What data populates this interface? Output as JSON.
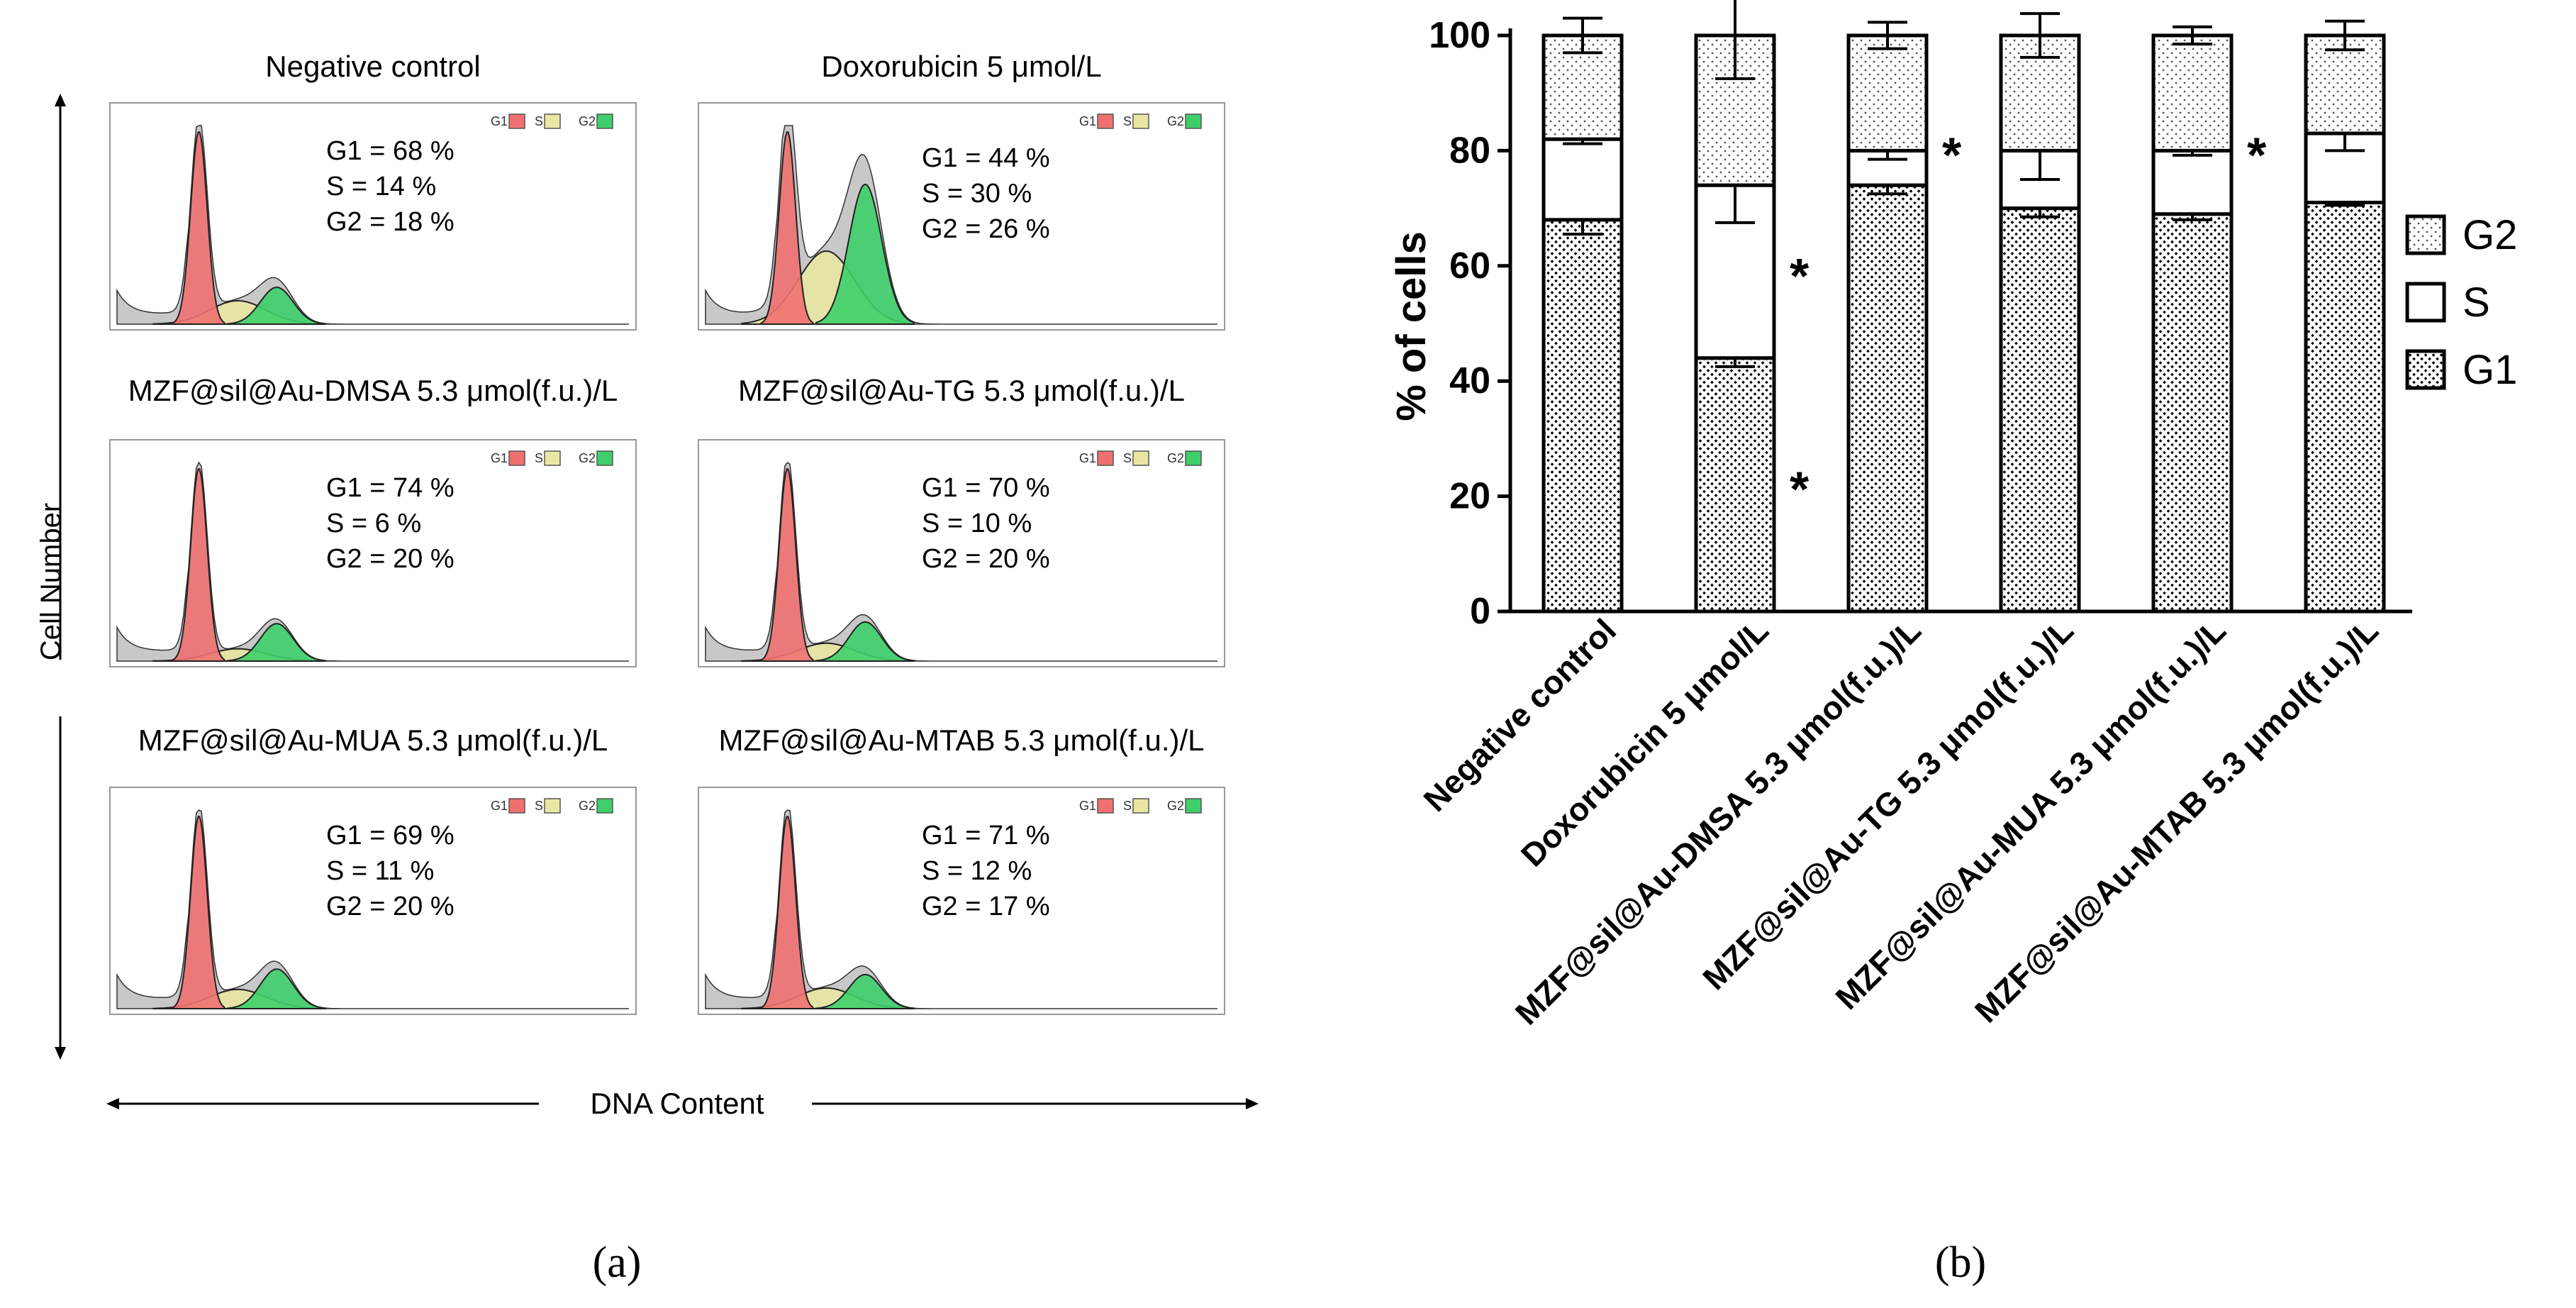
{
  "colors": {
    "g1_fill": "#f07070",
    "s_fill": "#e8e6a2",
    "g2_fill": "#3ecf6a",
    "raw_fill": "#c8c8c8",
    "axis": "#000000"
  },
  "panel_a": {
    "y_axis_label": "Cell Number",
    "x_axis_label": "DNA Content",
    "legend": [
      "G1",
      "S",
      "G2"
    ],
    "caption": "(a)",
    "histograms": [
      {
        "title": "Negative control",
        "lines": [
          "G1 = 68 %",
          "S = 14 %",
          "G2 = 18 %"
        ],
        "g1": 68,
        "s": 14,
        "g2": 18
      },
      {
        "title": "Doxorubicin 5 μmol/L",
        "lines": [
          "G1 = 44 %",
          "S = 30 %",
          "G2 = 26 %"
        ],
        "g1": 44,
        "s": 30,
        "g2": 26
      },
      {
        "title": "MZF@sil@Au-DMSA 5.3 μmol(f.u.)/L",
        "lines": [
          "G1 = 74 %",
          "S = 6 %",
          "G2 = 20 %"
        ],
        "g1": 74,
        "s": 6,
        "g2": 20
      },
      {
        "title": "MZF@sil@Au-TG 5.3 μmol(f.u.)/L",
        "lines": [
          "G1 = 70 %",
          "S = 10 %",
          "G2 = 20 %"
        ],
        "g1": 70,
        "s": 10,
        "g2": 20
      },
      {
        "title": "MZF@sil@Au-MUA 5.3 μmol(f.u.)/L",
        "lines": [
          "G1 = 69 %",
          "S = 11 %",
          "G2 = 20 %"
        ],
        "g1": 69,
        "s": 11,
        "g2": 20
      },
      {
        "title": "MZF@sil@Au-MTAB 5.3 μmol(f.u.)/L",
        "lines": [
          "G1 = 71 %",
          "S = 12 %",
          "G2 = 17 %"
        ],
        "g1": 71,
        "s": 12,
        "g2": 17
      }
    ]
  },
  "chart_data": {
    "type": "bar",
    "stacked": true,
    "caption": "(b)",
    "ylabel": "% of cells",
    "xlabel": "",
    "ylim": [
      0,
      100
    ],
    "yticks": [
      0,
      20,
      40,
      60,
      80,
      100
    ],
    "categories": [
      "Negative control",
      "Doxorubicin 5 μmol/L",
      "MZF@sil@Au-DMSA 5.3 μmol(f.u.)/L",
      "MZF@sil@Au-TG 5.3 μmol(f.u.)/L",
      "MZF@sil@Au-MUA 5.3 μmol(f.u.)/L",
      "MZF@sil@Au-MTAB 5.3 μmol(f.u.)/L"
    ],
    "series": [
      {
        "name": "G1",
        "pattern": "crosshatch",
        "values": [
          68,
          44,
          74,
          70,
          69,
          71
        ],
        "errors": [
          2.5,
          1.5,
          1.5,
          1.5,
          1.0,
          0.5
        ]
      },
      {
        "name": "S",
        "pattern": "white",
        "values": [
          14,
          30,
          6,
          10,
          11,
          12
        ],
        "errors": [
          0.8,
          6.5,
          1.5,
          5.0,
          0.8,
          3.0
        ]
      },
      {
        "name": "G2",
        "pattern": "dotted",
        "values": [
          18,
          26,
          20,
          20,
          20,
          17
        ],
        "errors": [
          3.0,
          7.5,
          2.3,
          3.8,
          1.5,
          2.5
        ]
      }
    ],
    "legend": [
      "G2",
      "S",
      "G1"
    ],
    "significance": [
      {
        "category_index": 1,
        "series": "S",
        "label": "*"
      },
      {
        "category_index": 1,
        "series": "G1",
        "label": "*"
      },
      {
        "category_index": 2,
        "series": "S",
        "label": "*"
      },
      {
        "category_index": 4,
        "series": "S",
        "label": "*"
      }
    ]
  }
}
